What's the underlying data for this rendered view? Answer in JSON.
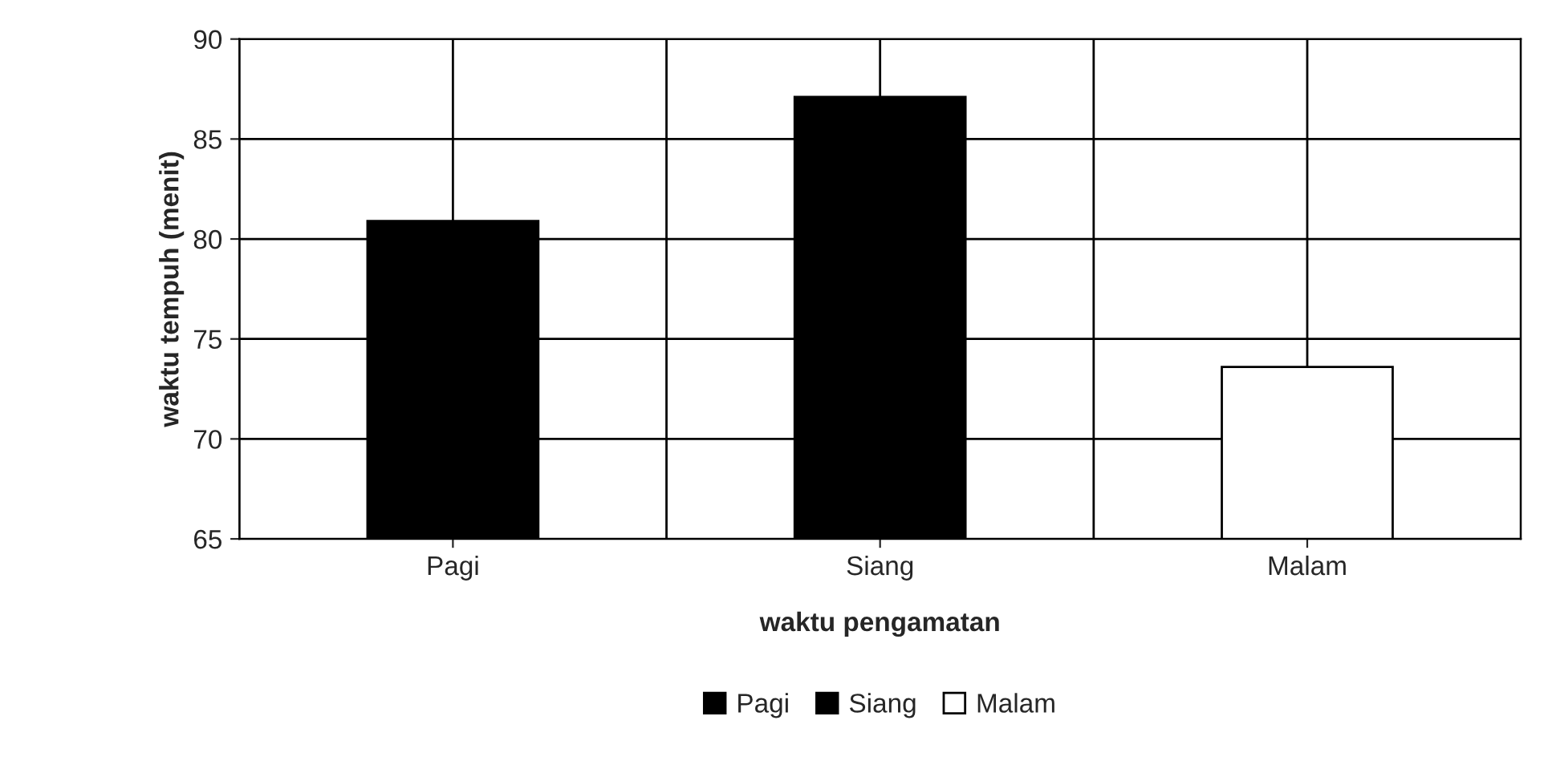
{
  "chart_data": {
    "type": "bar",
    "stacked": true,
    "categories": [
      "Pagi",
      "Siang",
      "Malam"
    ],
    "series": [
      {
        "name": "Pagi",
        "color": "#000000",
        "values": [
          80.9,
          null,
          null
        ]
      },
      {
        "name": "Siang",
        "color": "#000000",
        "values": [
          null,
          87.1,
          null
        ]
      },
      {
        "name": "Malam",
        "color": "#ffffff",
        "values": [
          null,
          null,
          73.6
        ]
      }
    ],
    "xlabel": "waktu pengamatan",
    "ylabel": "waktu tempuh (menit)",
    "ylim": [
      65,
      90
    ],
    "yticks": [
      65,
      70,
      75,
      80,
      85,
      90
    ],
    "grid": true,
    "legend": "bottom"
  }
}
